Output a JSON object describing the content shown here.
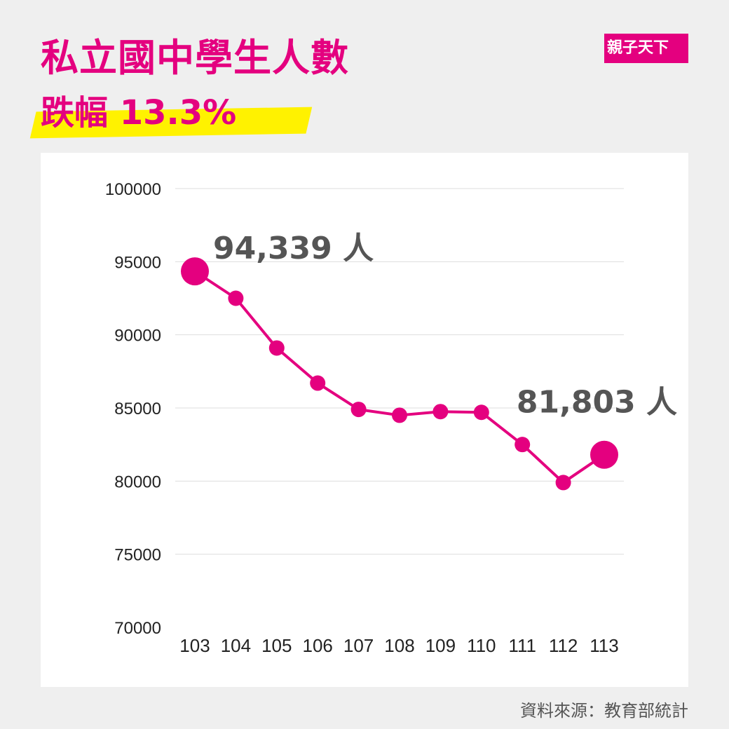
{
  "header": {
    "title": "私立國中學生人數",
    "subtitle": "跌幅 13.3%",
    "logo_text": "親子天下"
  },
  "footer": {
    "source": "資料來源：教育部統計"
  },
  "colors": {
    "accent": "#e4007f",
    "highlight": "#fff200",
    "grid": "#dddddd",
    "label": "#555555",
    "background": "#efefef"
  },
  "chart_data": {
    "type": "line",
    "title": "私立國中學生人數",
    "xlabel": "",
    "ylabel": "",
    "categories": [
      "103",
      "104",
      "105",
      "106",
      "107",
      "108",
      "109",
      "110",
      "111",
      "112",
      "113"
    ],
    "series": [
      {
        "values": [
          94339,
          92500,
          89100,
          86700,
          84900,
          84500,
          84750,
          84700,
          82500,
          79900,
          81803
        ]
      }
    ],
    "ylim": [
      70000,
      100000
    ],
    "yticks": [
      "70000",
      "75000",
      "80000",
      "85000",
      "90000",
      "95000",
      "100000"
    ],
    "grid": true,
    "annotations": [
      {
        "index": 0,
        "text": "94,339 人"
      },
      {
        "index": 10,
        "text": "81,803 人"
      }
    ]
  }
}
